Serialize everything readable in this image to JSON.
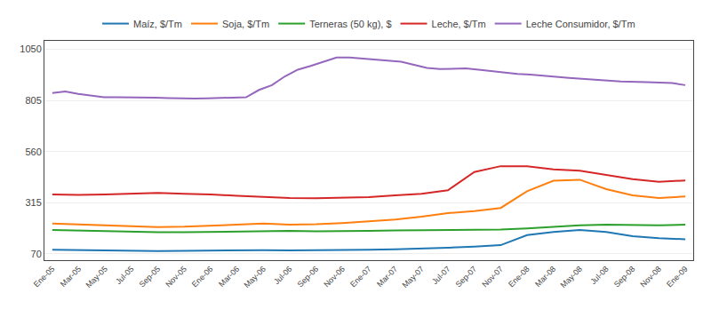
{
  "chart_data": {
    "type": "line",
    "categories": [
      "Ene-05",
      "Mar-05",
      "May-05",
      "Jul-05",
      "Sep-05",
      "Nov-05",
      "Ene-06",
      "Mar-06",
      "May-06",
      "Jul-06",
      "Sep-06",
      "Nov-06",
      "Ene-07",
      "Mar-07",
      "May-07",
      "Jul-07",
      "Sep-07",
      "Nov-07",
      "Ene-08",
      "Mar-08",
      "May-08",
      "Jul-08",
      "Sep-08",
      "Nov-08",
      "Ene-09"
    ],
    "series": [
      {
        "name": "Maíz, $/Tm",
        "values": [
          90,
          88,
          87,
          84,
          84,
          85,
          87,
          88,
          88,
          87,
          87,
          88,
          90,
          92,
          95,
          100,
          105,
          112,
          160,
          175,
          185,
          175,
          155,
          145,
          140
        ]
      },
      {
        "name": "Soja, $/Tm",
        "values": [
          215,
          210,
          205,
          200,
          198,
          200,
          205,
          210,
          215,
          210,
          212,
          218,
          225,
          235,
          248,
          265,
          275,
          290,
          370,
          420,
          425,
          380,
          350,
          338,
          345
        ]
      },
      {
        "name": "Terneras (50 kg), $",
        "values": [
          185,
          182,
          178,
          175,
          174,
          174,
          176,
          178,
          180,
          180,
          178,
          178,
          180,
          182,
          183,
          185,
          185,
          187,
          192,
          200,
          207,
          210,
          208,
          207,
          210
        ]
      },
      {
        "name": "Leche, $/Tm",
        "values": [
          355,
          352,
          355,
          360,
          362,
          358,
          355,
          348,
          342,
          338,
          336,
          340,
          342,
          350,
          358,
          375,
          462,
          490,
          490,
          475,
          468,
          448,
          428,
          415,
          422
        ]
      },
      {
        "name": "Leche Consumidor, $/Tm",
        "x": [
          0,
          0.489796,
          0.979592,
          1.469388,
          1.959184,
          2.44898,
          2.938776,
          3.428571,
          3.918367,
          4.408163,
          4.897959,
          5.387755,
          5.877551,
          6.367347,
          6.857143,
          7.346939,
          7.836735,
          8.326531,
          8.816327,
          9.306122,
          9.795918,
          10.285714,
          10.77551,
          11.265306,
          11.755102,
          12.244898,
          12.734694,
          13.22449,
          13.714286,
          14.204082,
          14.693878,
          15.183673,
          15.673469,
          16.163265,
          16.653061,
          17.142857,
          17.632653,
          18.122449,
          18.612245,
          19.102041,
          19.591837,
          20.081633,
          20.571429,
          21.061224,
          21.55102,
          22.040816,
          22.530612,
          23.020408,
          23.510204,
          24
        ],
        "values": [
          840,
          848,
          836,
          828,
          820,
          820,
          820,
          818,
          818,
          816,
          814,
          814,
          815,
          816,
          818,
          820,
          855,
          878,
          920,
          952,
          970,
          990,
          1010,
          1010,
          1005,
          1000,
          995,
          990,
          975,
          960,
          955,
          958,
          958,
          952,
          945,
          938,
          932,
          928,
          922,
          918,
          912,
          908,
          905,
          900,
          895,
          892,
          892,
          890,
          888,
          878
        ]
      }
    ],
    "xlim": [
      -0.3,
      24.3
    ],
    "ylim": [
      40,
      1090
    ],
    "yticks": [
      70,
      315,
      560,
      805,
      1050
    ],
    "grid": true,
    "legend": "top"
  }
}
